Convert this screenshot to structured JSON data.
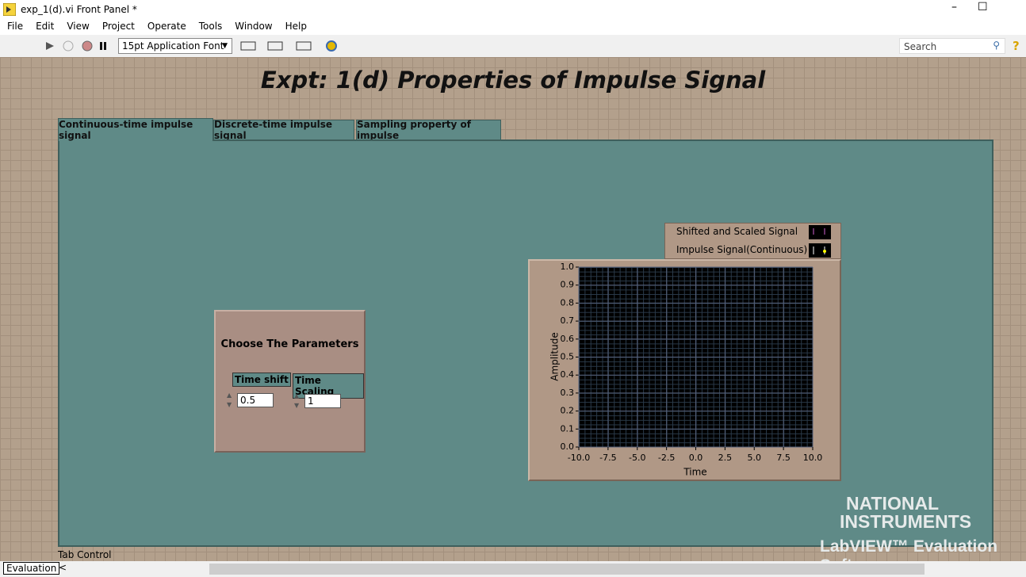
{
  "window": {
    "title": "exp_1(d).vi Front Panel *"
  },
  "menu": [
    "File",
    "Edit",
    "View",
    "Project",
    "Operate",
    "Tools",
    "Window",
    "Help"
  ],
  "toolbar": {
    "font": "15pt Application Font",
    "search": "Search"
  },
  "panel": {
    "title": "Expt: 1(d) Properties of Impulse Signal",
    "tabs": [
      "Continuous-time impulse signal",
      "Discrete-time impulse signal",
      "Sampling property of impulse"
    ],
    "tab_control_label": "Tab Control"
  },
  "parameters": {
    "title": "Choose The Parameters",
    "controls": [
      {
        "label": "Time shift",
        "value": 0.5
      },
      {
        "label": "Time Scaling",
        "value": 1
      }
    ]
  },
  "graph": {
    "legend": [
      "Shifted and Scaled Signal",
      "Impulse Signal(Continuous)"
    ],
    "ylabel": "Amplitude",
    "xlabel": "Time",
    "xlim": [
      -10,
      10
    ],
    "ylim": [
      0,
      1
    ],
    "xticks": [
      {
        "value": -10,
        "label": "-10.0"
      },
      -7.5,
      {
        "value": -5,
        "label": "-5.0"
      },
      -2.5,
      {
        "value": 0,
        "label": "0.0"
      },
      2.5,
      {
        "value": 5,
        "label": "5.0"
      },
      7.5,
      {
        "value": 10,
        "label": "10.0"
      }
    ],
    "yticks": [
      {
        "value": 0,
        "label": "0.0"
      },
      0.1,
      0.2,
      0.3,
      0.4,
      0.5,
      0.6,
      0.7,
      0.8,
      0.9,
      {
        "value": 1,
        "label": "1.0"
      }
    ]
  },
  "status": {
    "mode": "Evaluation"
  },
  "watermark": {
    "brand": [
      "NATIONAL",
      "INSTRUMENTS"
    ],
    "product": "LabVIEW™ Evaluation Softw"
  }
}
